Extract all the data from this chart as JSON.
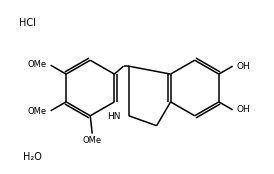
{
  "background_color": "#ffffff",
  "line_color": "#000000",
  "line_width": 1.1,
  "figsize": [
    2.74,
    1.74
  ],
  "dpi": 100,
  "labels": {
    "H2O": "H₂O",
    "HCl": "HCl",
    "HN": "HN",
    "OH1": "OH",
    "OH2": "OH",
    "OMe1": "OMe",
    "OMe2": "OMe",
    "OMe3": "OMe"
  },
  "font_size": 6.5
}
